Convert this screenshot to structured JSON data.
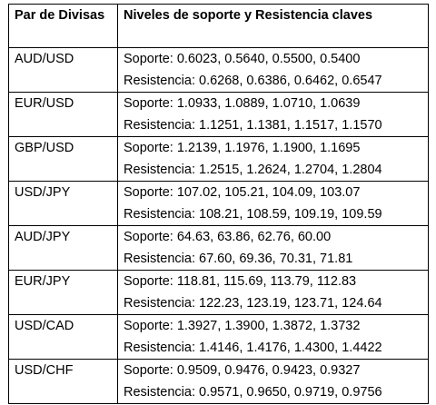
{
  "table": {
    "header_pair": "Par de Divisas",
    "header_levels": "Niveles de soporte y Resistencia claves",
    "rows": [
      {
        "pair": "AUD/USD",
        "soporte": "Soporte: 0.6023, 0.5640, 0.5500, 0.5400",
        "resistencia": "Resistencia: 0.6268, 0.6386, 0.6462, 0.6547"
      },
      {
        "pair": "EUR/USD",
        "soporte": "Soporte: 1.0933, 1.0889, 1.0710, 1.0639",
        "resistencia": "Resistencia: 1.1251, 1.1381, 1.1517, 1.1570"
      },
      {
        "pair": "GBP/USD",
        "soporte": "Soporte: 1.2139, 1.1976, 1.1900, 1.1695",
        "resistencia": "Resistencia: 1.2515, 1.2624, 1.2704, 1.2804"
      },
      {
        "pair": "USD/JPY",
        "soporte": "Soporte: 107.02, 105.21, 104.09, 103.07",
        "resistencia": "Resistencia: 108.21, 108.59, 109.19, 109.59"
      },
      {
        "pair": "AUD/JPY",
        "soporte": "Soporte: 64.63, 63.86, 62.76, 60.00",
        "resistencia": "Resistencia: 67.60, 69.36, 70.31, 71.81"
      },
      {
        "pair": "EUR/JPY",
        "soporte": "Soporte: 118.81, 115.69, 113.79, 112.83",
        "resistencia": "Resistencia: 122.23, 123.19, 123.71, 124.64"
      },
      {
        "pair": "USD/CAD",
        "soporte": "Soporte: 1.3927, 1.3900, 1.3872, 1.3732",
        "resistencia": "Resistencia: 1.4146, 1.4176, 1.4300, 1.4422"
      },
      {
        "pair": "USD/CHF",
        "soporte": "Soporte: 0.9509, 0.9476, 0.9423, 0.9327",
        "resistencia": "Resistencia: 0.9571, 0.9650, 0.9719, 0.9756"
      }
    ]
  }
}
